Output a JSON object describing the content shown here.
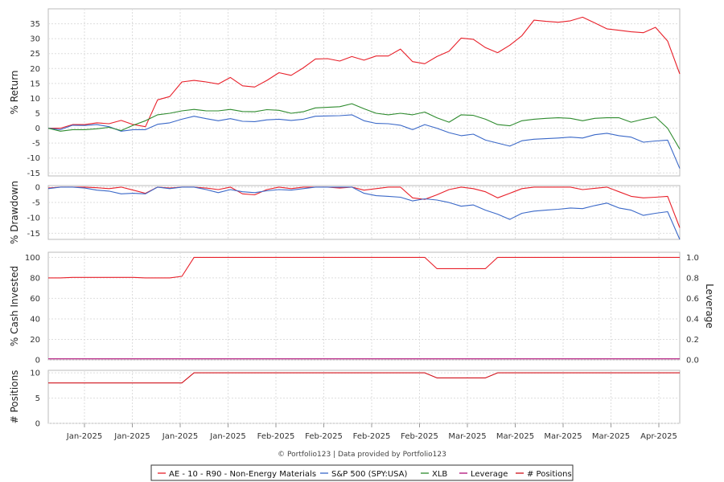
{
  "credit": "© Portfolio123 | Data provided by Portfolio123",
  "colors": {
    "strategy": "#e8202a",
    "benchmark": "#3a68c8",
    "xlb": "#2e8b2e",
    "leverage": "#b0107a",
    "positions": "#d0101a"
  },
  "chart_data": {
    "type": "line",
    "x_tick_labels": [
      "Jan-2025",
      "Jan-2025",
      "Jan-2025",
      "Jan-2025",
      "Feb-2025",
      "Feb-2025",
      "Feb-2025",
      "Feb-2025",
      "Mar-2025",
      "Mar-2025",
      "Mar-2025",
      "Mar-2025",
      "Apr-2025"
    ],
    "panels": {
      "return": {
        "ylabel": "% Return",
        "ylim": [
          -16,
          40
        ],
        "yticks": [
          -15,
          -10,
          -5,
          0,
          5,
          10,
          15,
          20,
          25,
          30,
          35
        ],
        "series": {
          "strategy": [
            0,
            0,
            1.2,
            1.2,
            1.8,
            1.5,
            2.6,
            1.2,
            0.5,
            9.5,
            10.6,
            15.5,
            16,
            15.5,
            14.8,
            17,
            14.2,
            13.8,
            16,
            18.6,
            17.7,
            20.2,
            23.2,
            23.3,
            22.5,
            24,
            22.8,
            24.2,
            24.2,
            26.5,
            22.3,
            21.6,
            24,
            25.8,
            30.2,
            29.8,
            27,
            25.3,
            27.8,
            31,
            36.2,
            35.8,
            35.5,
            36,
            37.2,
            35.3,
            33.3,
            32.8,
            32.3,
            32,
            33.8,
            29.2,
            18.2
          ],
          "benchmark": [
            0,
            -0.5,
            1,
            0.9,
            1.2,
            0.5,
            -1,
            -0.5,
            -0.5,
            1.3,
            1.8,
            3,
            4,
            3.2,
            2.5,
            3.2,
            2.3,
            2.2,
            2.8,
            3,
            2.6,
            3,
            4,
            4.1,
            4.2,
            4.5,
            2.5,
            1.6,
            1.5,
            1,
            -0.5,
            1.2,
            0,
            -1.5,
            -2.5,
            -2,
            -4,
            -5,
            -6,
            -4.2,
            -3.7,
            -3.5,
            -3.3,
            -3,
            -3.3,
            -2.2,
            -1.7,
            -2.5,
            -3,
            -4.7,
            -4.3,
            -4,
            -13.5
          ],
          "xlb": [
            0,
            -1,
            -0.5,
            -0.5,
            -0.2,
            0.3,
            -0.8,
            1,
            2.5,
            4.5,
            5,
            5.8,
            6.3,
            5.8,
            5.8,
            6.3,
            5.6,
            5.5,
            6.2,
            6,
            5,
            5.5,
            6.8,
            7,
            7.2,
            8.2,
            6.5,
            5,
            4.5,
            5,
            4.5,
            5.4,
            3.5,
            2,
            4.5,
            4.3,
            3,
            1.2,
            0.8,
            2.5,
            3,
            3.3,
            3.5,
            3.3,
            2.5,
            3.3,
            3.5,
            3.5,
            2,
            3,
            3.8,
            0,
            -7
          ]
        }
      },
      "drawdown": {
        "ylabel": "% Drawdown",
        "ylim": [
          -17,
          0.5
        ],
        "yticks": [
          -15,
          -10,
          -5,
          0
        ],
        "series": {
          "strategy": [
            -0.3,
            0,
            0,
            0,
            -0.2,
            -0.5,
            0,
            -1,
            -2,
            0,
            -0.3,
            0,
            0,
            -0.3,
            -0.8,
            0,
            -2.2,
            -2.5,
            -0.8,
            0,
            -0.5,
            0,
            0,
            0,
            -0.3,
            0,
            -1,
            -0.5,
            0,
            0,
            -3.5,
            -4,
            -2.5,
            -0.8,
            0,
            -0.5,
            -1.5,
            -3.5,
            -2,
            -0.5,
            0,
            0,
            0,
            0,
            -0.8,
            -0.4,
            0,
            -1.5,
            -3,
            -3.5,
            -3.3,
            -3,
            -13.2
          ],
          "benchmark": [
            -0.5,
            0,
            0,
            -0.3,
            -1,
            -1.3,
            -2.2,
            -2,
            -2.2,
            0,
            -0.5,
            0,
            0,
            -0.8,
            -1.8,
            -0.8,
            -1.5,
            -1.8,
            -1.2,
            -0.8,
            -1,
            -0.5,
            0,
            0,
            0,
            0,
            -2,
            -2.8,
            -3,
            -3.3,
            -4.5,
            -3.8,
            -4.2,
            -5,
            -6.2,
            -5.8,
            -7.5,
            -8.8,
            -10.5,
            -8.5,
            -7.8,
            -7.5,
            -7.2,
            -6.8,
            -7,
            -6,
            -5.2,
            -6.8,
            -7.5,
            -9.2,
            -8.5,
            -8,
            -17
          ]
        }
      },
      "cash": {
        "ylabel": "% Cash Invested",
        "ylabel_right": "Leverage",
        "ylim": [
          0,
          105
        ],
        "yticks": [
          0,
          20,
          40,
          60,
          80,
          100
        ],
        "yticks_right": [
          "0.0",
          "0.2",
          "0.4",
          "0.6",
          "0.8",
          "1.0"
        ],
        "series": {
          "strategy": [
            80,
            80,
            80.5,
            80.5,
            80.5,
            80.5,
            80.5,
            80.5,
            80,
            80,
            80,
            81.5,
            100,
            100,
            100,
            100,
            100,
            100,
            100,
            100,
            100,
            100,
            100,
            100,
            100,
            100,
            100,
            100,
            100,
            100,
            100,
            100,
            89,
            89,
            89,
            89,
            89,
            100,
            100,
            100,
            100,
            100,
            100,
            100,
            100,
            100,
            100,
            100,
            100,
            100,
            100,
            100,
            100
          ],
          "leverage": [
            1,
            1,
            1,
            1,
            1,
            1,
            1,
            1,
            1,
            1,
            1,
            1,
            1,
            1,
            1,
            1,
            1,
            1,
            1,
            1,
            1,
            1,
            1,
            1,
            1,
            1,
            1,
            1,
            1,
            1,
            1,
            1,
            1,
            1,
            1,
            1,
            1,
            1,
            1,
            1,
            1,
            1,
            1,
            1,
            1,
            1,
            1,
            1,
            1,
            1,
            1,
            1,
            1
          ]
        }
      },
      "positions": {
        "ylabel": "# Positions",
        "ylim": [
          0,
          10.5
        ],
        "yticks": [
          0,
          5,
          10
        ],
        "series": {
          "positions": [
            8,
            8,
            8,
            8,
            8,
            8,
            8,
            8,
            8,
            8,
            8,
            8,
            10,
            10,
            10,
            10,
            10,
            10,
            10,
            10,
            10,
            10,
            10,
            10,
            10,
            10,
            10,
            10,
            10,
            10,
            10,
            10,
            9,
            9,
            9,
            9,
            9,
            10,
            10,
            10,
            10,
            10,
            10,
            10,
            10,
            10,
            10,
            10,
            10,
            10,
            10,
            10,
            10
          ]
        }
      }
    },
    "legend": [
      "AE - 10 - R90 - Non-Energy Materials",
      "S&P 500 (SPY:USA)",
      "XLB",
      "Leverage",
      "# Positions"
    ],
    "legend_placement": "bottom-center",
    "grid": true
  }
}
